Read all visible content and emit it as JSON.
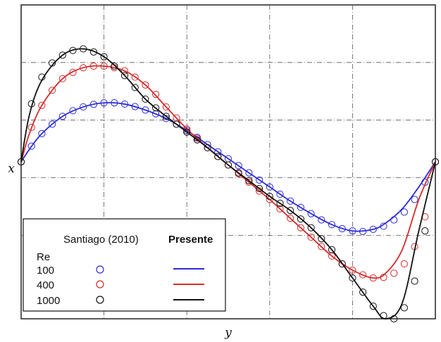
{
  "chart_data": {
    "type": "line",
    "xlabel": "y",
    "ylabel": "x",
    "xlim": [
      0,
      1
    ],
    "ylim": [
      -0.5,
      0.5
    ],
    "grid": true,
    "legend_position": "bottom-left",
    "legend": {
      "col_markers": "Santiago (2010)",
      "col_lines": "Presente",
      "row_header": "Re"
    },
    "series": [
      {
        "name": "100",
        "color": "#2b2bd6",
        "line_x": [
          0,
          0.02,
          0.05,
          0.1,
          0.15,
          0.2,
          0.25,
          0.3,
          0.35,
          0.4,
          0.45,
          0.5,
          0.55,
          0.6,
          0.65,
          0.7,
          0.75,
          0.8,
          0.85,
          0.88,
          0.92,
          0.96,
          1.0
        ],
        "line_y": [
          0,
          0.04,
          0.09,
          0.145,
          0.175,
          0.188,
          0.184,
          0.165,
          0.138,
          0.1,
          0.055,
          0.01,
          -0.035,
          -0.08,
          -0.125,
          -0.165,
          -0.2,
          -0.22,
          -0.215,
          -0.195,
          -0.15,
          -0.08,
          0
        ],
        "points_x": [
          0,
          0.025,
          0.05,
          0.075,
          0.1,
          0.125,
          0.15,
          0.175,
          0.2,
          0.225,
          0.25,
          0.275,
          0.3,
          0.325,
          0.35,
          0.375,
          0.4,
          0.425,
          0.45,
          0.475,
          0.5,
          0.525,
          0.55,
          0.575,
          0.6,
          0.625,
          0.65,
          0.675,
          0.7,
          0.725,
          0.75,
          0.775,
          0.8,
          0.825,
          0.85,
          0.875,
          0.9,
          0.925,
          0.95,
          0.975,
          1.0
        ],
        "points_y": [
          0,
          0.05,
          0.09,
          0.12,
          0.145,
          0.163,
          0.175,
          0.183,
          0.188,
          0.188,
          0.184,
          0.176,
          0.165,
          0.153,
          0.138,
          0.12,
          0.1,
          0.078,
          0.055,
          0.032,
          0.01,
          -0.012,
          -0.035,
          -0.058,
          -0.08,
          -0.103,
          -0.125,
          -0.145,
          -0.165,
          -0.185,
          -0.2,
          -0.213,
          -0.22,
          -0.222,
          -0.215,
          -0.205,
          -0.185,
          -0.16,
          -0.12,
          -0.065,
          0
        ]
      },
      {
        "name": "400",
        "color": "#d62b2b",
        "line_x": [
          0,
          0.02,
          0.05,
          0.1,
          0.15,
          0.2,
          0.25,
          0.3,
          0.35,
          0.4,
          0.45,
          0.5,
          0.55,
          0.6,
          0.65,
          0.7,
          0.75,
          0.8,
          0.85,
          0.88,
          0.92,
          0.96,
          1.0
        ],
        "line_y": [
          0,
          0.09,
          0.18,
          0.265,
          0.3,
          0.305,
          0.29,
          0.245,
          0.175,
          0.105,
          0.045,
          -0.01,
          -0.065,
          -0.12,
          -0.18,
          -0.24,
          -0.3,
          -0.345,
          -0.37,
          -0.355,
          -0.28,
          -0.12,
          0
        ],
        "points_x": [
          0,
          0.025,
          0.05,
          0.075,
          0.1,
          0.125,
          0.15,
          0.175,
          0.2,
          0.225,
          0.25,
          0.275,
          0.3,
          0.325,
          0.35,
          0.375,
          0.4,
          0.425,
          0.45,
          0.475,
          0.5,
          0.525,
          0.55,
          0.575,
          0.6,
          0.625,
          0.65,
          0.675,
          0.7,
          0.725,
          0.75,
          0.775,
          0.8,
          0.825,
          0.85,
          0.875,
          0.9,
          0.925,
          0.95,
          0.975,
          1.0
        ],
        "points_y": [
          0,
          0.11,
          0.18,
          0.228,
          0.265,
          0.285,
          0.3,
          0.305,
          0.305,
          0.3,
          0.29,
          0.27,
          0.245,
          0.215,
          0.175,
          0.14,
          0.105,
          0.075,
          0.045,
          0.017,
          -0.01,
          -0.038,
          -0.065,
          -0.093,
          -0.12,
          -0.15,
          -0.18,
          -0.21,
          -0.24,
          -0.27,
          -0.3,
          -0.325,
          -0.345,
          -0.36,
          -0.37,
          -0.368,
          -0.355,
          -0.325,
          -0.27,
          -0.175,
          0
        ]
      },
      {
        "name": "1000",
        "color": "#111111",
        "line_x": [
          0,
          0.02,
          0.05,
          0.1,
          0.15,
          0.2,
          0.25,
          0.3,
          0.35,
          0.4,
          0.45,
          0.5,
          0.55,
          0.6,
          0.65,
          0.7,
          0.75,
          0.8,
          0.85,
          0.88,
          0.92,
          0.96,
          1.0
        ],
        "line_y": [
          0,
          0.15,
          0.26,
          0.34,
          0.36,
          0.335,
          0.275,
          0.2,
          0.145,
          0.095,
          0.045,
          -0.01,
          -0.06,
          -0.11,
          -0.155,
          -0.21,
          -0.28,
          -0.37,
          -0.46,
          -0.5,
          -0.45,
          -0.22,
          0
        ],
        "points_x": [
          0,
          0.025,
          0.05,
          0.075,
          0.1,
          0.125,
          0.15,
          0.175,
          0.2,
          0.225,
          0.25,
          0.275,
          0.3,
          0.325,
          0.35,
          0.375,
          0.4,
          0.425,
          0.45,
          0.475,
          0.5,
          0.525,
          0.55,
          0.575,
          0.6,
          0.625,
          0.65,
          0.675,
          0.7,
          0.725,
          0.75,
          0.775,
          0.8,
          0.825,
          0.85,
          0.875,
          0.9,
          0.925,
          0.95,
          0.975,
          1.0
        ],
        "points_y": [
          0,
          0.185,
          0.27,
          0.315,
          0.34,
          0.355,
          0.36,
          0.35,
          0.335,
          0.305,
          0.275,
          0.237,
          0.2,
          0.172,
          0.145,
          0.12,
          0.095,
          0.07,
          0.045,
          0.017,
          -0.01,
          -0.035,
          -0.06,
          -0.085,
          -0.11,
          -0.132,
          -0.155,
          -0.182,
          -0.21,
          -0.245,
          -0.28,
          -0.325,
          -0.37,
          -0.415,
          -0.46,
          -0.49,
          -0.5,
          -0.465,
          -0.38,
          -0.22,
          0
        ]
      }
    ]
  }
}
